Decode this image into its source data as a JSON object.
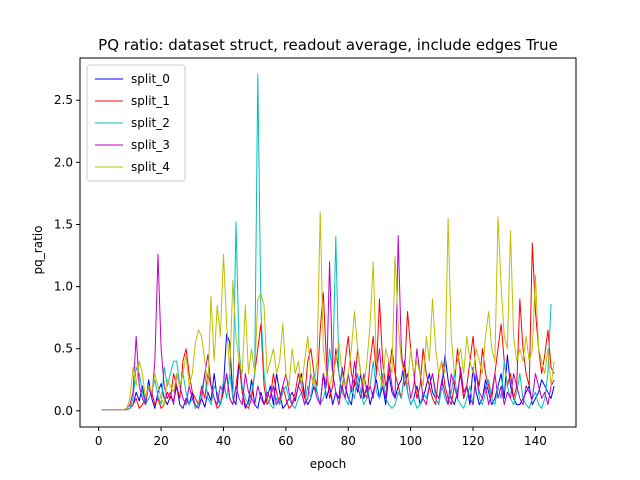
{
  "chart_data": {
    "type": "line",
    "title": "PQ ratio: dataset struct, readout average, include edges True",
    "xlabel": "epoch",
    "ylabel": "pq_ratio",
    "xlim": [
      -6,
      153
    ],
    "ylim": [
      -0.13,
      2.84
    ],
    "xticks": [
      0,
      20,
      40,
      60,
      80,
      100,
      120,
      140
    ],
    "yticks": [
      0.0,
      0.5,
      1.0,
      1.5,
      2.0,
      2.5
    ],
    "grid": false,
    "legend_position": "top-left",
    "x_start": 1,
    "series": [
      {
        "name": "split_0",
        "color": "#0000ff",
        "values": [
          0.01,
          0.01,
          0.01,
          0.01,
          0.01,
          0.01,
          0.01,
          0.01,
          0.01,
          0.02,
          0.05,
          0.15,
          0.08,
          0.2,
          0.05,
          0.25,
          0.1,
          0.02,
          0.15,
          0.22,
          0.1,
          0.05,
          0.12,
          0.08,
          0.2,
          0.05,
          0.02,
          0.1,
          0.05,
          0.15,
          0.02,
          0.05,
          0.1,
          0.03,
          0.15,
          0.08,
          0.3,
          0.1,
          0.05,
          0.2,
          0.62,
          0.55,
          0.1,
          0.05,
          0.4,
          0.15,
          0.02,
          0.08,
          0.25,
          0.05,
          0.02,
          0.15,
          0.05,
          0.1,
          0.2,
          0.05,
          0.3,
          0.15,
          0.02,
          0.05,
          0.1,
          0.15,
          0.08,
          0.2,
          0.3,
          0.12,
          0.05,
          0.1,
          0.2,
          0.15,
          0.05,
          0.3,
          0.1,
          0.2,
          0.05,
          0.15,
          0.1,
          0.35,
          0.2,
          0.1,
          0.05,
          0.25,
          0.15,
          0.3,
          0.1,
          0.2,
          0.05,
          0.15,
          0.25,
          0.1,
          0.2,
          0.05,
          0.3,
          0.15,
          0.1,
          0.2,
          0.25,
          0.4,
          0.15,
          0.05,
          0.1,
          0.2,
          0.05,
          0.1,
          0.2,
          0.3,
          0.15,
          0.1,
          0.05,
          0.2,
          0.45,
          0.25,
          0.1,
          0.05,
          0.15,
          0.3,
          0.1,
          0.2,
          0.05,
          0.35,
          0.15,
          0.05,
          0.1,
          0.25,
          0.15,
          0.05,
          0.1,
          0.2,
          0.3,
          0.1,
          0.45,
          0.2,
          0.1,
          0.05,
          0.05,
          0.1,
          0.15,
          0.2,
          0.05,
          0.1,
          0.15,
          0.25,
          0.2,
          0.15,
          0.1,
          0.2
        ]
      },
      {
        "name": "split_1",
        "color": "#ff0000",
        "values": [
          0.01,
          0.01,
          0.01,
          0.01,
          0.01,
          0.01,
          0.01,
          0.01,
          0.01,
          0.02,
          0.05,
          0.1,
          0.02,
          0.05,
          0.1,
          0.2,
          0.15,
          0.05,
          0.1,
          0.02,
          0.05,
          0.15,
          0.1,
          0.3,
          0.2,
          0.1,
          0.4,
          0.5,
          0.3,
          0.15,
          0.1,
          0.05,
          0.2,
          0.1,
          0.3,
          0.2,
          0.1,
          0.02,
          0.05,
          0.15,
          0.3,
          0.1,
          0.05,
          0.2,
          0.4,
          0.15,
          0.05,
          0.02,
          0.1,
          0.3,
          0.5,
          0.7,
          0.2,
          0.05,
          0.1,
          0.3,
          0.15,
          0.05,
          0.2,
          0.1,
          0.02,
          0.05,
          0.15,
          0.3,
          0.2,
          0.1,
          0.4,
          0.5,
          0.3,
          0.2,
          0.65,
          0.95,
          0.4,
          0.1,
          0.2,
          0.5,
          0.3,
          0.15,
          0.4,
          0.6,
          0.3,
          0.2,
          0.5,
          0.3,
          0.15,
          0.1,
          0.4,
          0.6,
          0.3,
          0.9,
          0.4,
          0.2,
          0.3,
          0.5,
          0.3,
          0.2,
          0.1,
          0.3,
          0.8,
          0.5,
          0.3,
          0.1,
          0.2,
          0.5,
          0.3,
          0.2,
          0.1,
          0.05,
          0.3,
          0.4,
          0.2,
          0.1,
          0.05,
          0.2,
          0.5,
          0.3,
          0.1,
          0.2,
          0.4,
          0.6,
          0.3,
          0.2,
          0.5,
          0.3,
          0.2,
          0.1,
          0.3,
          0.5,
          0.7,
          0.4,
          0.2,
          0.3,
          0.1,
          0.2,
          0.9,
          0.5,
          0.3,
          0.2,
          1.35,
          0.8,
          0.5,
          0.3,
          0.45,
          0.65,
          0.35,
          0.3
        ]
      },
      {
        "name": "split_2",
        "color": "#00bfbf",
        "values": [
          0.01,
          0.01,
          0.01,
          0.01,
          0.01,
          0.01,
          0.01,
          0.01,
          0.01,
          0.02,
          0.1,
          0.35,
          0.3,
          0.15,
          0.05,
          0.1,
          0.15,
          0.25,
          0.12,
          0.05,
          0.35,
          0.2,
          0.3,
          0.4,
          0.4,
          0.2,
          0.3,
          0.15,
          0.05,
          0.1,
          0.02,
          0.05,
          0.15,
          0.3,
          0.1,
          0.05,
          0.2,
          0.15,
          0.05,
          0.25,
          0.1,
          0.3,
          0.1,
          1.52,
          0.5,
          0.2,
          0.1,
          0.05,
          0.15,
          0.3,
          2.71,
          0.8,
          0.3,
          0.1,
          0.05,
          0.02,
          0.1,
          0.05,
          0.15,
          0.2,
          0.1,
          0.05,
          0.02,
          0.1,
          0.15,
          0.05,
          0.2,
          0.1,
          0.3,
          0.15,
          0.05,
          0.1,
          0.2,
          0.5,
          0.3,
          1.4,
          0.3,
          0.15,
          0.1,
          0.05,
          0.2,
          0.1,
          0.3,
          0.15,
          0.05,
          0.1,
          0.2,
          0.4,
          0.15,
          0.1,
          0.3,
          0.1,
          0.05,
          0.02,
          0.05,
          0.15,
          0.1,
          0.3,
          0.15,
          0.05,
          0.1,
          0.02,
          0.05,
          0.15,
          0.1,
          0.2,
          0.3,
          0.1,
          0.05,
          0.2,
          0.1,
          0.05,
          0.15,
          0.3,
          0.1,
          0.05,
          0.02,
          0.1,
          0.2,
          0.05,
          0.3,
          0.1,
          0.05,
          0.15,
          0.25,
          0.1,
          0.05,
          0.2,
          0.1,
          0.4,
          0.2,
          0.1,
          0.05,
          0.15,
          0.3,
          0.1,
          0.05,
          0.02,
          0.1,
          0.15,
          0.05,
          0.02,
          0.1,
          0.3,
          0.86
        ]
      },
      {
        "name": "split_3",
        "color": "#bf00bf",
        "values": [
          0.01,
          0.01,
          0.01,
          0.01,
          0.01,
          0.01,
          0.01,
          0.01,
          0.02,
          0.05,
          0.15,
          0.6,
          0.2,
          0.1,
          0.05,
          0.2,
          0.1,
          0.4,
          1.26,
          0.5,
          0.2,
          0.1,
          0.15,
          0.05,
          0.3,
          0.2,
          0.1,
          0.05,
          0.2,
          0.1,
          0.05,
          0.02,
          0.1,
          0.3,
          0.45,
          0.2,
          0.1,
          0.05,
          0.2,
          0.15,
          0.3,
          0.1,
          0.05,
          0.2,
          0.1,
          0.05,
          0.3,
          0.15,
          0.1,
          0.05,
          0.2,
          0.1,
          0.05,
          0.15,
          0.1,
          0.2,
          0.05,
          0.1,
          0.2,
          0.3,
          0.15,
          0.05,
          0.1,
          0.2,
          0.15,
          0.05,
          0.1,
          0.3,
          0.2,
          0.1,
          0.05,
          0.3,
          0.2,
          1.2,
          0.3,
          0.15,
          0.05,
          0.2,
          0.1,
          0.3,
          0.15,
          0.4,
          0.2,
          0.1,
          0.3,
          0.15,
          0.2,
          0.1,
          0.3,
          0.5,
          0.2,
          0.1,
          0.4,
          0.2,
          0.1,
          1.41,
          0.5,
          0.2,
          0.3,
          0.1,
          0.2,
          0.5,
          0.3,
          0.1,
          0.05,
          0.2,
          0.3,
          0.15,
          0.1,
          0.25,
          0.15,
          0.05,
          0.3,
          0.2,
          0.1,
          0.35,
          0.15,
          0.2,
          0.1,
          0.05,
          0.3,
          0.15,
          0.1,
          0.2,
          0.05,
          0.15,
          0.3,
          0.1,
          0.2,
          0.05,
          0.15,
          0.1,
          0.3,
          0.2,
          0.1,
          0.05,
          0.2,
          0.15,
          0.1,
          0.3,
          0.2,
          0.1,
          0.15,
          0.05,
          0.2,
          0.25
        ]
      },
      {
        "name": "split_4",
        "color": "#bfbf00",
        "values": [
          0.01,
          0.01,
          0.01,
          0.01,
          0.01,
          0.01,
          0.01,
          0.01,
          0.02,
          0.1,
          0.35,
          0.2,
          0.4,
          0.3,
          0.1,
          0.2,
          0.15,
          0.3,
          0.2,
          0.1,
          0.05,
          0.25,
          0.2,
          0.15,
          0.3,
          0.2,
          0.3,
          0.45,
          0.2,
          0.3,
          0.55,
          0.65,
          0.6,
          0.4,
          0.2,
          0.92,
          0.4,
          0.85,
          0.6,
          1.26,
          0.7,
          0.3,
          1.05,
          0.6,
          0.4,
          0.3,
          0.85,
          0.3,
          0.5,
          0.3,
          0.9,
          0.94,
          0.85,
          0.3,
          0.4,
          0.5,
          0.3,
          0.4,
          0.7,
          0.3,
          0.2,
          0.5,
          0.3,
          0.4,
          0.2,
          0.4,
          0.6,
          0.3,
          0.2,
          0.4,
          1.6,
          0.5,
          0.3,
          0.2,
          0.3,
          0.4,
          0.55,
          0.3,
          0.2,
          0.3,
          0.5,
          0.8,
          0.5,
          0.3,
          0.2,
          0.4,
          0.7,
          1.2,
          0.4,
          0.3,
          0.2,
          0.5,
          0.4,
          0.3,
          1.24,
          0.7,
          0.4,
          0.3,
          0.2,
          0.5,
          0.3,
          0.4,
          0.3,
          0.2,
          0.6,
          0.4,
          0.9,
          0.5,
          0.3,
          0.4,
          0.3,
          1.55,
          0.6,
          0.3,
          0.4,
          0.5,
          0.3,
          0.6,
          0.4,
          0.3,
          0.5,
          0.4,
          0.3,
          0.6,
          0.8,
          0.5,
          0.4,
          1.56,
          1.0,
          0.6,
          0.5,
          1.45,
          0.6,
          0.4,
          0.5,
          0.4,
          0.6,
          0.4,
          0.5,
          1.09,
          0.5,
          0.4,
          0.3,
          0.5,
          0.2,
          0.4
        ]
      }
    ]
  }
}
